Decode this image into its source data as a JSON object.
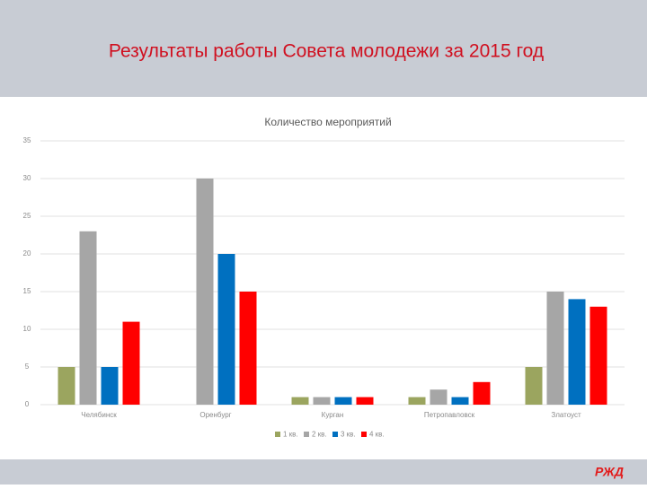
{
  "slide_title": "Результаты работы Совета молодежи за 2015 год",
  "logo": "РЖД",
  "chart_data": {
    "type": "bar",
    "title": "Количество мероприятий",
    "categories": [
      "Челябинск",
      "Оренбург",
      "Курган",
      "Петропавловск",
      "Златоуст"
    ],
    "series": [
      {
        "name": "1 кв.",
        "color": "#9ba55f",
        "values": [
          5,
          0,
          1,
          1,
          5
        ]
      },
      {
        "name": "2 кв.",
        "color": "#a6a6a6",
        "values": [
          23,
          30,
          1,
          2,
          15
        ]
      },
      {
        "name": "3 кв.",
        "color": "#0070c0",
        "values": [
          5,
          20,
          1,
          1,
          14
        ]
      },
      {
        "name": "4 кв.",
        "color": "#ff0000",
        "values": [
          11,
          15,
          1,
          3,
          13
        ]
      }
    ],
    "ylim": [
      0,
      35
    ],
    "yticks": [
      0,
      5,
      10,
      15,
      20,
      25,
      30,
      35
    ],
    "grid": true,
    "legend": "bottom"
  }
}
